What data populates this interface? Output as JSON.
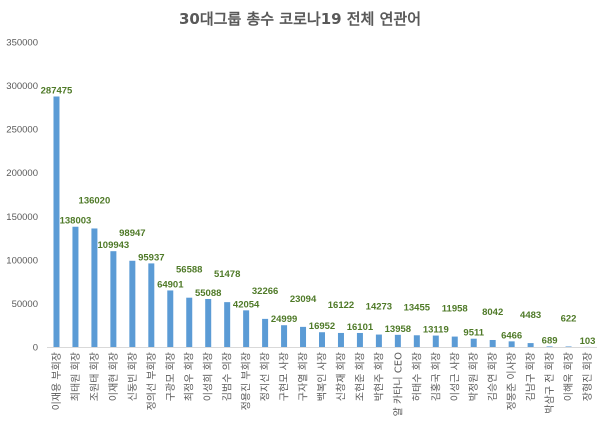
{
  "chart_data": {
    "type": "bar",
    "title": "30대그룹 총수 코로나19 전체 연관어",
    "xlabel": "",
    "ylabel": "",
    "ylim": [
      0,
      350000
    ],
    "yticks": [
      0,
      50000,
      100000,
      150000,
      200000,
      250000,
      300000,
      350000
    ],
    "grid": false,
    "bar_color": "#5b9bd5",
    "label_color": "#4f7a28",
    "categories": [
      "이재용 부회장",
      "최태원 회장",
      "조원태 회장",
      "이재현 회장",
      "신동빈 회장",
      "정의선 부회장",
      "구광모 회장",
      "최정우 회장",
      "이성희 회장",
      "김범수 의장",
      "정용진 부회장",
      "정지선 회장",
      "구현모 사장",
      "구자열 회장",
      "백복인 사장",
      "신창재 회장",
      "조현준 회장",
      "박현주 회장",
      "알 카타니 CEO",
      "허태수 회장",
      "김홍국 회장",
      "이성근 사장",
      "박정원 회장",
      "김승연 회장",
      "정몽준 이사장",
      "김남구 회장",
      "박삼구 전 회장",
      "이해욱 회장",
      "장형진 회장"
    ],
    "values": [
      287475,
      138003,
      136020,
      109943,
      98947,
      95937,
      64901,
      56588,
      55088,
      51478,
      42054,
      32266,
      24999,
      23094,
      16952,
      16122,
      16101,
      14273,
      13958,
      13455,
      13119,
      11958,
      9511,
      8042,
      6466,
      4483,
      689,
      622,
      103
    ]
  }
}
